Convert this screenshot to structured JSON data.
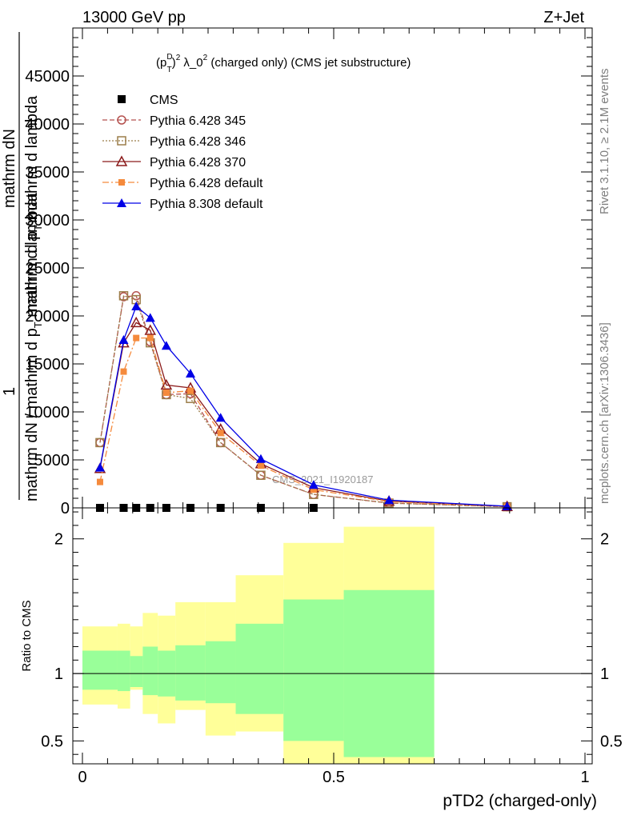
{
  "header": {
    "left": "13000 GeV pp",
    "right": "Z+Jet"
  },
  "side_labels": {
    "rivet": "Rivet 3.1.10, ≥ 2.1M events",
    "mcplots": "mcplots.cern.ch [arXiv:1306.3436]"
  },
  "watermark": "CMS_2021_I1920187",
  "chart_data": [
    {
      "type": "line",
      "title_parts": {
        "open": "(p",
        "sup": "D",
        "sub": "T",
        "close_sup": "2",
        "mid": " λ_0",
        "sup2": "2",
        "tail": " (charged only) (CMS jet substructure)"
      },
      "xlabel": "pTD2 (charged-only)",
      "ylabel_top": "1",
      "ylabel_num": "mathrm dN",
      "ylabel_num2": "mathrm d p",
      "ylabel_num2_sub": "T",
      "ylabel_num2_tail": " mathrm d lambda",
      "ylabel_den": "mathrm dN / mathrm d p",
      "ylabel_den_sub": "T",
      "ylabel_den_tail": " mathrm d lambda",
      "xlim": [
        0,
        1
      ],
      "ylim": [
        0,
        50000
      ],
      "yticks": [
        "0",
        "5000",
        "10000",
        "15000",
        "20000",
        "25000",
        "30000",
        "35000",
        "40000",
        "45000"
      ],
      "ytick_values": [
        0,
        5000,
        10000,
        15000,
        20000,
        25000,
        30000,
        35000,
        40000,
        45000
      ],
      "legend_position": "top-left",
      "series": [
        {
          "name": "CMS",
          "marker": "square",
          "line": "none",
          "color": "#000000",
          "x": [
            0.035,
            0.082,
            0.107,
            0.135,
            0.167,
            0.215,
            0.275,
            0.355,
            0.46
          ],
          "y": [
            0,
            0,
            0,
            0,
            0,
            0,
            0,
            0,
            0
          ]
        },
        {
          "name": "Pythia 6.428 345",
          "marker": "circle-open",
          "line": "dashed",
          "color": "#b5524f",
          "x": [
            0.035,
            0.082,
            0.107,
            0.135,
            0.167,
            0.215,
            0.275,
            0.355,
            0.46,
            0.61,
            0.845
          ],
          "y": [
            6800,
            22000,
            22100,
            17300,
            11800,
            11900,
            6800,
            3400,
            1400,
            500,
            120
          ]
        },
        {
          "name": "Pythia 6.428 346",
          "marker": "square-open",
          "line": "dotted",
          "color": "#9c7e4a",
          "x": [
            0.035,
            0.082,
            0.107,
            0.135,
            0.167,
            0.215,
            0.275,
            0.355,
            0.46,
            0.61,
            0.845
          ],
          "y": [
            6800,
            22100,
            21700,
            17200,
            11800,
            11400,
            6800,
            3400,
            1400,
            500,
            120
          ]
        },
        {
          "name": "Pythia 6.428 370",
          "marker": "triangle-open",
          "line": "solid",
          "color": "#8b1a1a",
          "x": [
            0.035,
            0.082,
            0.107,
            0.135,
            0.167,
            0.215,
            0.275,
            0.355,
            0.46,
            0.61,
            0.845
          ],
          "y": [
            4100,
            17200,
            19300,
            18500,
            12800,
            12500,
            8200,
            4600,
            2100,
            700,
            150
          ]
        },
        {
          "name": "Pythia 6.428 default",
          "marker": "square-filled",
          "line": "dashdot",
          "color": "#f58a3c",
          "x": [
            0.035,
            0.082,
            0.107,
            0.135,
            0.167,
            0.215,
            0.275,
            0.355,
            0.46,
            0.61,
            0.845
          ],
          "y": [
            2700,
            14200,
            17700,
            17700,
            12000,
            12200,
            7800,
            4400,
            1900,
            650,
            140
          ]
        },
        {
          "name": "Pythia 8.308 default",
          "marker": "triangle-filled",
          "line": "solid",
          "color": "#0000e6",
          "x": [
            0.035,
            0.082,
            0.107,
            0.135,
            0.167,
            0.215,
            0.275,
            0.355,
            0.46,
            0.61,
            0.845
          ],
          "y": [
            4200,
            17500,
            21000,
            19800,
            16900,
            14000,
            9400,
            5100,
            2400,
            800,
            170
          ]
        }
      ]
    },
    {
      "type": "area",
      "ylabel": "Ratio to CMS",
      "xlabel": "pTD2 (charged-only)",
      "xlim": [
        0,
        1
      ],
      "ylim": [
        0.33,
        2.23
      ],
      "xticks": [
        "0",
        "0.5",
        "1"
      ],
      "xtick_values": [
        0,
        0.5,
        1
      ],
      "yticks": [
        "0.5",
        "1",
        "2"
      ],
      "ytick_values": [
        0.5,
        1,
        2
      ],
      "reference_line": 1,
      "bins": [
        0,
        0.07,
        0.095,
        0.12,
        0.15,
        0.185,
        0.245,
        0.305,
        0.4,
        0.52,
        0.7,
        1.0
      ],
      "green_band": {
        "color": "#99ff99",
        "lo": [
          0.88,
          0.87,
          0.9,
          0.84,
          0.83,
          0.8,
          0.78,
          0.7,
          0.5,
          0.38
        ],
        "hi": [
          1.17,
          1.17,
          1.13,
          1.2,
          1.17,
          1.21,
          1.24,
          1.37,
          1.55,
          1.62
        ]
      },
      "yellow_band": {
        "color": "#ffff99",
        "lo": [
          0.77,
          0.74,
          0.88,
          0.7,
          0.63,
          0.73,
          0.54,
          0.57,
          0.33,
          0.33
        ],
        "hi": [
          1.35,
          1.37,
          1.35,
          1.45,
          1.43,
          1.53,
          1.53,
          1.73,
          1.97,
          2.09
        ]
      }
    }
  ]
}
